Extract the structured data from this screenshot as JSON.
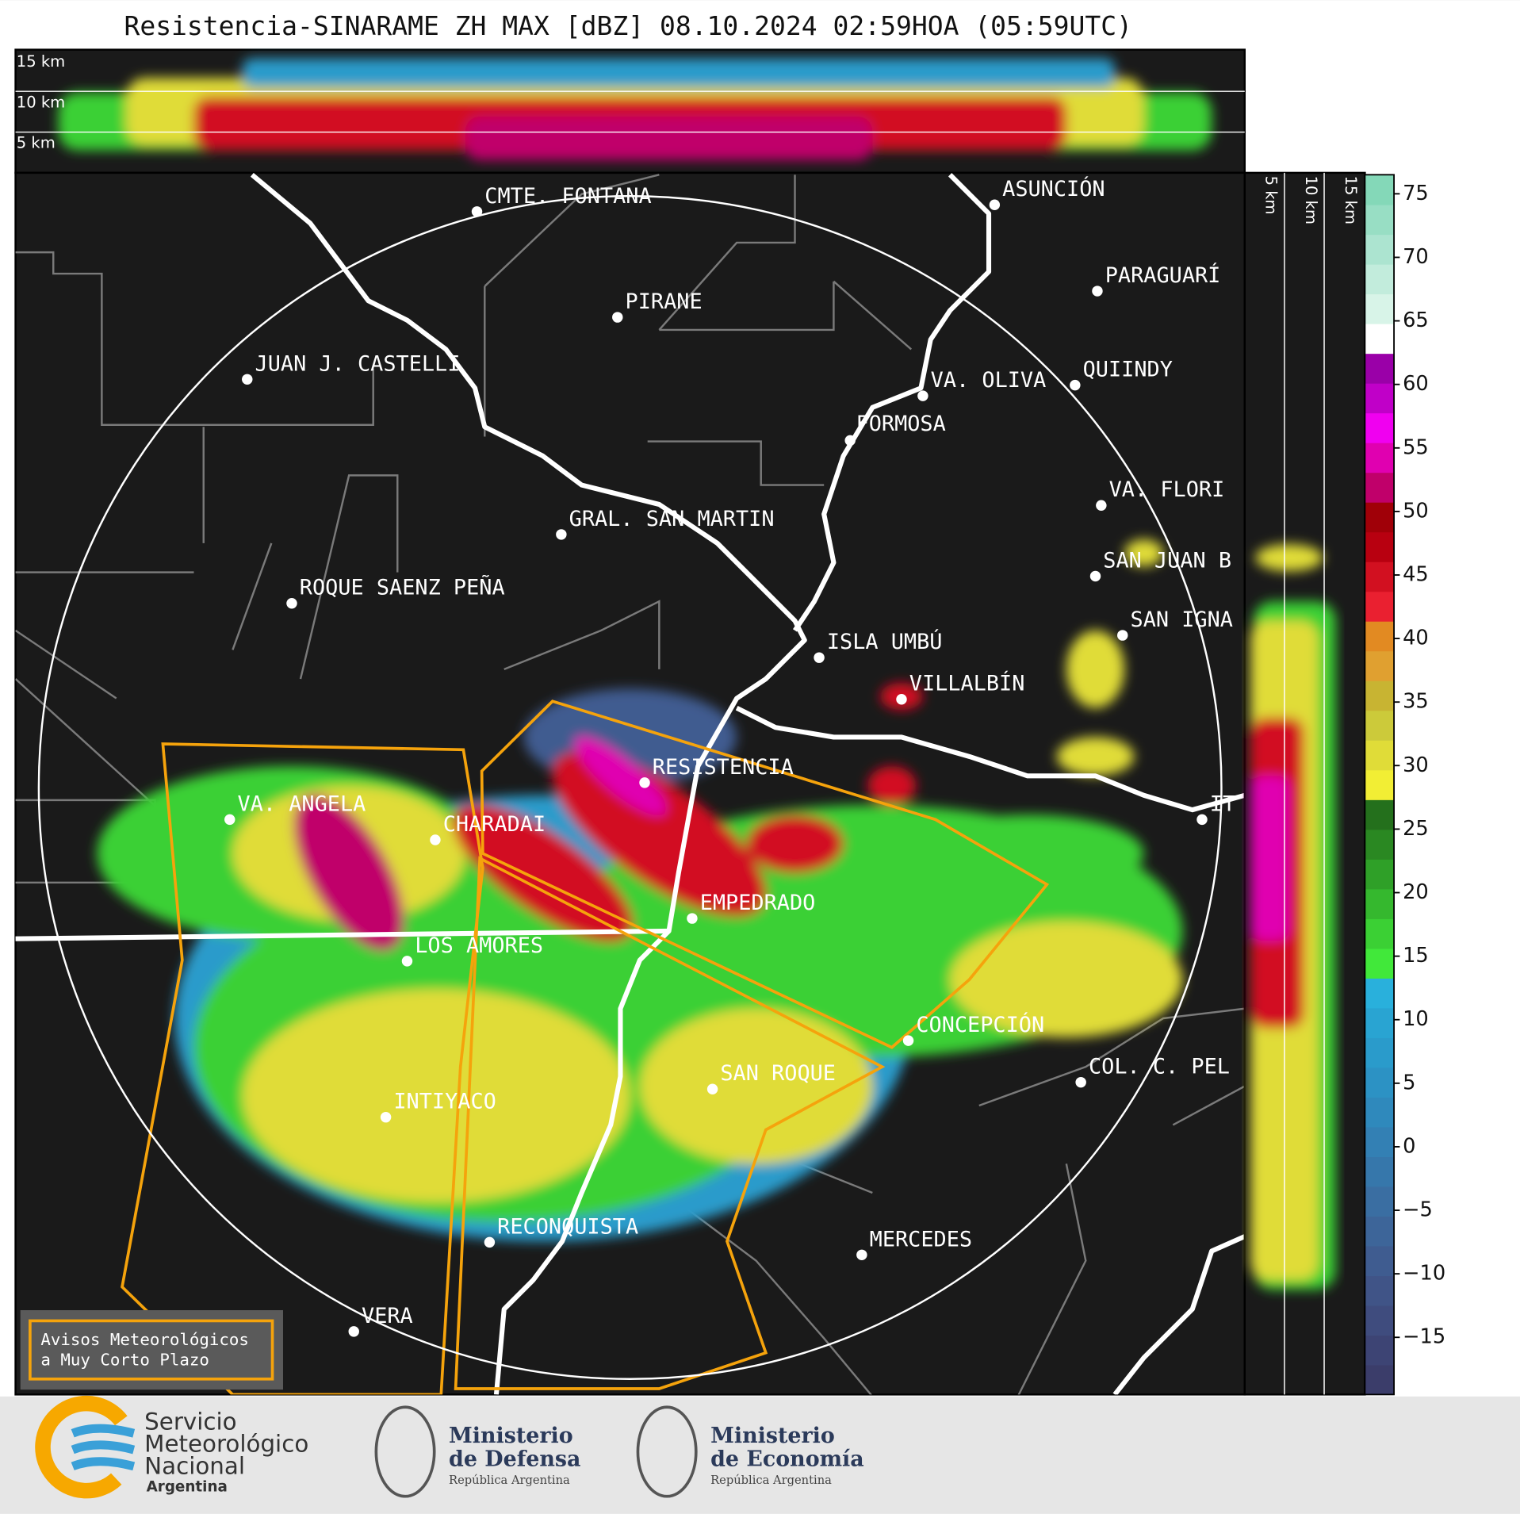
{
  "title": "Resistencia-SINARAME ZH MAX [dBZ] 08.10.2024 02:59HOA (05:59UTC)",
  "top_profile": {
    "height_labels": [
      "15 km",
      "10 km",
      "5 km"
    ]
  },
  "side_profile": {
    "height_labels": [
      "5 km",
      "10 km",
      "15 km"
    ]
  },
  "map": {
    "cities": [
      "CMTE. FONTANA",
      "ASUNCIÓN",
      "PARAGUARÍ",
      "PIRANE",
      "JUAN J. CASTELLI",
      "VA. OLIVA",
      "QUIINDY",
      "FORMOSA",
      "VA. FLORI",
      "GRAL. SAN MARTIN",
      "SAN JUAN B",
      "ROQUE SAENZ PEÑA",
      "SAN IGNA",
      "ISLA UMBÚ",
      "VILLALBÍN",
      "RESISTENCIA",
      "IT",
      "VA. ANGELA",
      "CHARADAI",
      "EMPEDRADO",
      "LOS AMORES",
      "CONCEPCIÓN",
      "COL. C. PEL",
      "SAN ROQUE",
      "INTIYACO",
      "RECONQUISTA",
      "MERCEDES",
      "VERA"
    ]
  },
  "warning_box": {
    "lines": [
      "Avisos Meteorológicos",
      "a Muy Corto Plazo"
    ]
  },
  "colorbar": {
    "lim": [
      -19.5,
      76.5
    ],
    "ticks": [
      {
        "value": -15,
        "label": "−15"
      },
      {
        "value": -10,
        "label": "−10"
      },
      {
        "value": -5,
        "label": "−5"
      },
      0,
      5,
      10,
      15,
      20,
      25,
      30,
      35,
      40,
      45,
      50,
      55,
      60,
      65,
      70,
      75
    ],
    "colors": [
      "#3b3d6a",
      "#3d4474",
      "#3f4c7e",
      "#405487",
      "#3f5c90",
      "#3d6599",
      "#3a6ea2",
      "#3677ab",
      "#3380b4",
      "#2f89bc",
      "#2c92c4",
      "#2a9bcb",
      "#29a4d2",
      "#29b0dc",
      "#41e83a",
      "#3bd034",
      "#35b82e",
      "#2fa028",
      "#2a8822",
      "#24701c",
      "#f2ee34",
      "#e0dc38",
      "#ccca3a",
      "#c8b432",
      "#e0a030",
      "#e28a22",
      "#ea2030",
      "#d21020",
      "#b80010",
      "#a00008",
      "#c0006a",
      "#e000b0",
      "#f000f0",
      "#c000c8",
      "#9a00a8",
      "#ffffff",
      "#d8f4e8",
      "#c2ecdc",
      "#acE4d0",
      "#98dec4",
      "#84d8b8"
    ]
  },
  "logos": [
    {
      "lines": [
        "Servicio",
        "Meteorológico",
        "Nacional",
        "Argentina"
      ]
    },
    {
      "lines": [
        "Ministerio",
        "de Defensa",
        "República Argentina"
      ]
    },
    {
      "lines": [
        "Ministerio",
        "de Economía",
        "República Argentina"
      ]
    }
  ]
}
